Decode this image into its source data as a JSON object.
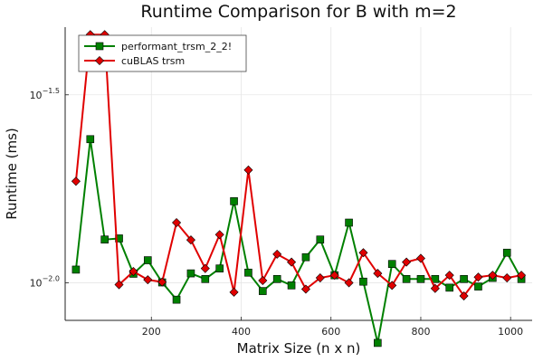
{
  "chart_data": {
    "type": "line",
    "title": "Runtime Comparison for B with m=2",
    "xlabel": "Matrix Size (n x n)",
    "ylabel": "Runtime (ms)",
    "x_scale": "linear",
    "y_scale": "log10",
    "xlim": [
      8,
      1048
    ],
    "ylim": [
      -2.1,
      -1.32
    ],
    "xticks": [
      200,
      400,
      600,
      800,
      1000
    ],
    "xtick_labels": [
      "200",
      "400",
      "600",
      "800",
      "1000"
    ],
    "yticks": [
      -2.0,
      -1.5
    ],
    "ytick_labels": [
      {
        "base": "10",
        "exp": "−2.0"
      },
      {
        "base": "10",
        "exp": "−1.5"
      }
    ],
    "grid": true,
    "legend_position": "top-left",
    "x": [
      32,
      64,
      96,
      128,
      160,
      192,
      224,
      256,
      288,
      320,
      352,
      384,
      416,
      448,
      480,
      512,
      544,
      576,
      608,
      640,
      672,
      704,
      736,
      768,
      800,
      832,
      864,
      896,
      928,
      960,
      992,
      1024
    ],
    "series": [
      {
        "name": "performant_trsm_2_2!",
        "color": "#008000",
        "marker": "square",
        "y_log10": [
          -1.965,
          -1.618,
          -1.885,
          -1.882,
          -1.976,
          -1.94,
          -1.999,
          -2.045,
          -1.975,
          -1.99,
          -1.962,
          -1.783,
          -1.973,
          -2.022,
          -1.99,
          -2.007,
          -1.932,
          -1.885,
          -1.98,
          -1.84,
          -1.997,
          -2.16,
          -1.95,
          -1.99,
          -1.99,
          -1.99,
          -2.013,
          -1.99,
          -2.01,
          -1.987,
          -1.92,
          -1.99
        ]
      },
      {
        "name": "cuBLAS trsm",
        "color": "#e00000",
        "marker": "diamond",
        "y_log10": [
          -1.73,
          -1.34,
          -1.34,
          -2.005,
          -1.97,
          -1.992,
          -1.998,
          -1.84,
          -1.886,
          -1.962,
          -1.872,
          -2.025,
          -1.7,
          -1.994,
          -1.924,
          -1.945,
          -2.017,
          -1.987,
          -1.98,
          -2.0,
          -1.92,
          -1.975,
          -2.007,
          -1.945,
          -1.935,
          -2.015,
          -1.98,
          -2.035,
          -1.985,
          -1.98,
          -1.987,
          -1.98
        ]
      }
    ]
  }
}
